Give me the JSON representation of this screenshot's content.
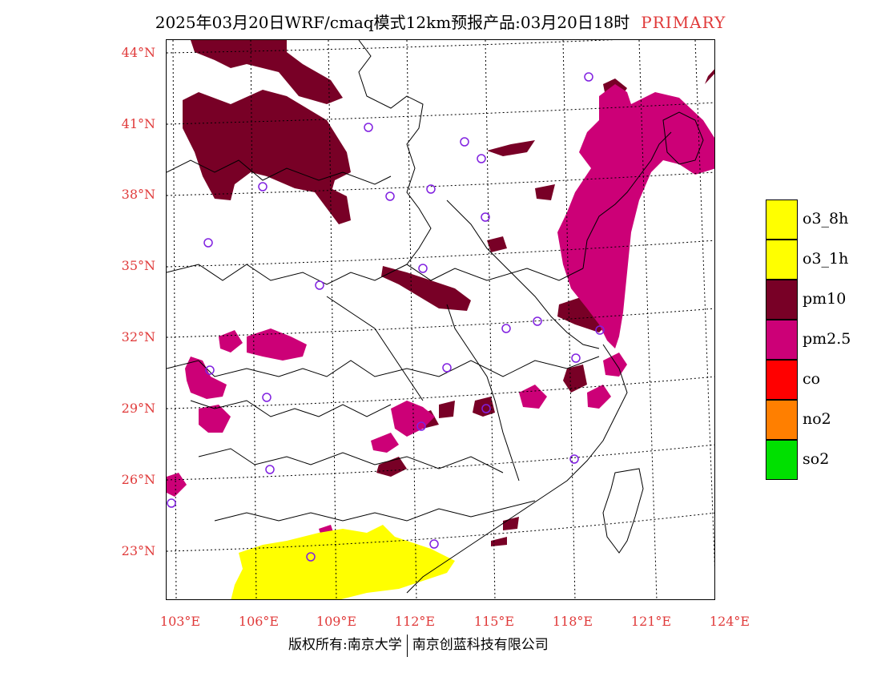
{
  "title": {
    "main": "2025年03月20日WRF/cmaq模式12km预报产品:03月20日18时",
    "tag": "PRIMARY"
  },
  "map": {
    "lat_labels": [
      "44°N",
      "41°N",
      "38°N",
      "35°N",
      "32°N",
      "29°N",
      "26°N",
      "23°N"
    ],
    "lon_labels": [
      "103°E",
      "106°E",
      "109°E",
      "112°E",
      "115°E",
      "118°E",
      "121°E",
      "124°E"
    ]
  },
  "legend": [
    {
      "label": "o3_8h",
      "color": "#ffff00"
    },
    {
      "label": "o3_1h",
      "color": "#ffff00"
    },
    {
      "label": "pm10",
      "color": "#780026"
    },
    {
      "label": "pm2.5",
      "color": "#cc0077"
    },
    {
      "label": "co",
      "color": "#ff0000"
    },
    {
      "label": "no2",
      "color": "#ff7f00"
    },
    {
      "label": "so2",
      "color": "#00e000"
    }
  ],
  "footer": {
    "left": "版权所有:南京大学",
    "right": "南京创蓝科技有限公司"
  }
}
